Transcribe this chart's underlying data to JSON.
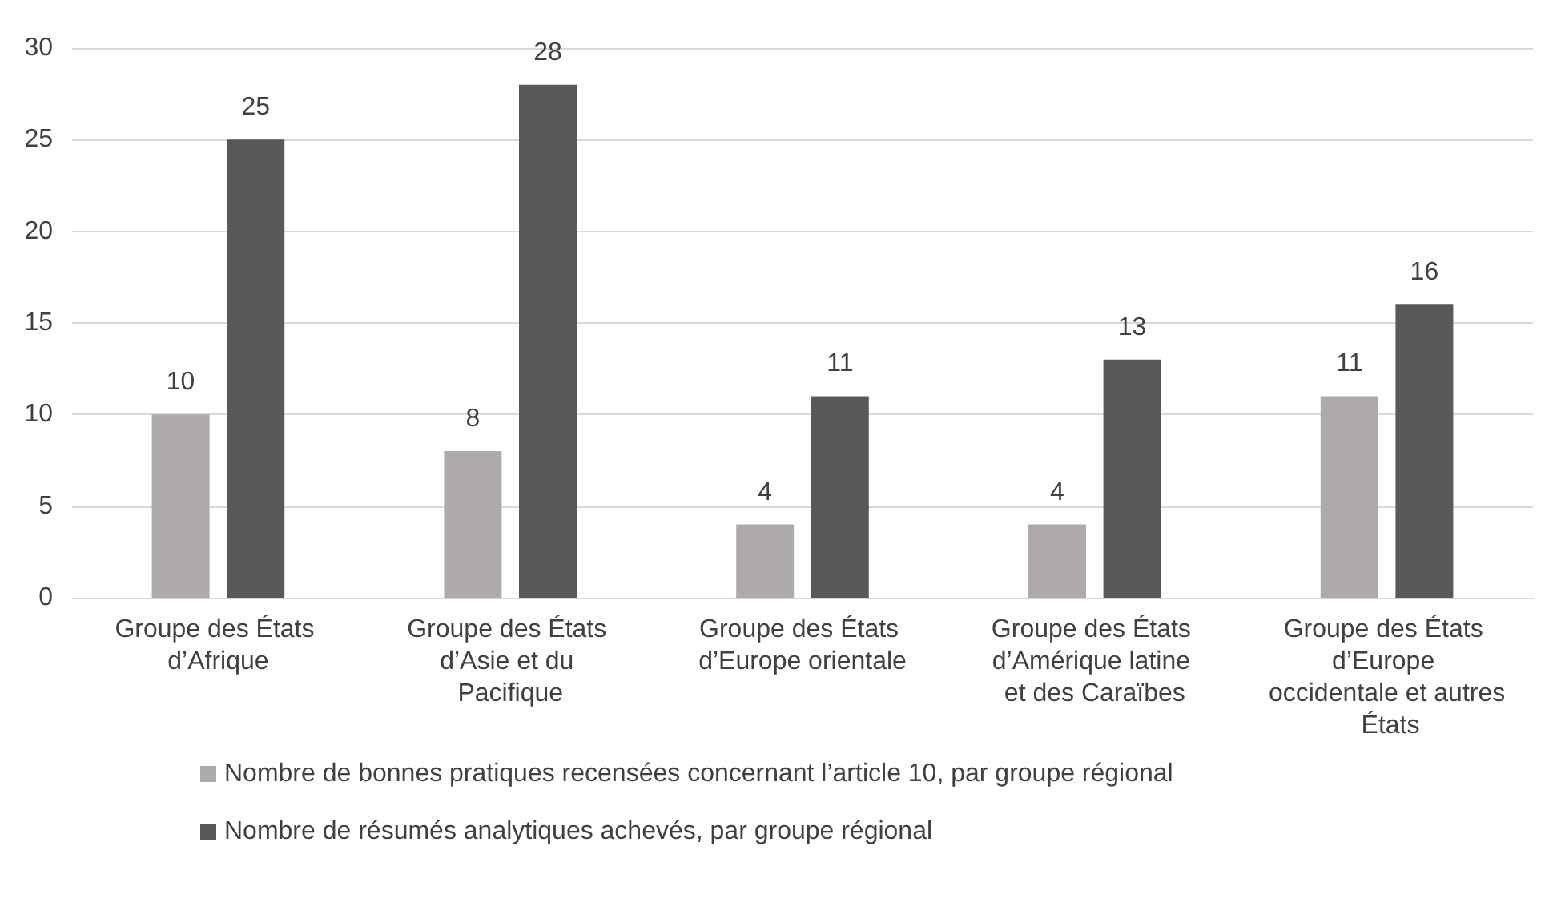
{
  "chart_data": {
    "type": "bar",
    "categories": [
      "Groupe des États d’Afrique",
      "Groupe des États d’Asie et du Pacifique",
      "Groupe des États d’Europe orientale",
      "Groupe des États d’Amérique latine et des Caraïbes",
      "Groupe des États d’Europe occidentale et autres États"
    ],
    "series": [
      {
        "name": "Nombre de bonnes pratiques recensées concernant l’article 10, par groupe régional",
        "color": "#aeaaaa",
        "values": [
          10,
          8,
          4,
          4,
          11
        ]
      },
      {
        "name": "Nombre de résumés analytiques achevés, par groupe régional",
        "color": "#595959",
        "values": [
          25,
          28,
          11,
          13,
          16
        ]
      }
    ],
    "ylim": [
      0,
      30
    ],
    "yticks": [
      0,
      5,
      10,
      15,
      20,
      25,
      30
    ],
    "grid": "y",
    "legend": "bottom",
    "data_labels": true
  }
}
